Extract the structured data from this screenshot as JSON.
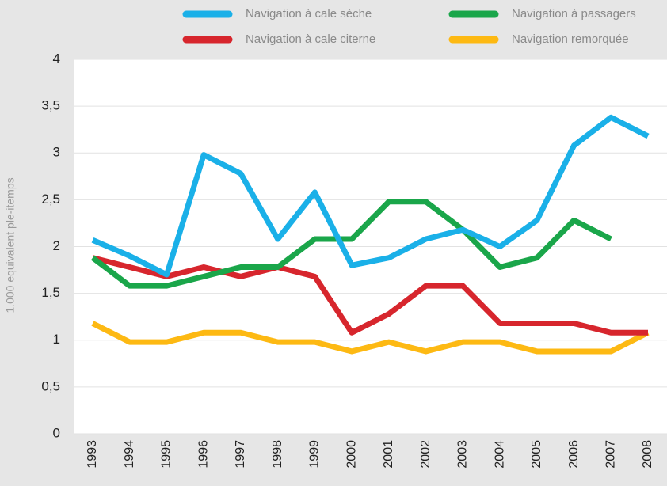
{
  "chart_data": {
    "type": "line",
    "y_label": "1.000 equivalent ple-itemps",
    "categories": [
      "1993",
      "1994",
      "1995",
      "1996",
      "1997",
      "1998",
      "1999",
      "2000",
      "2001",
      "2002",
      "2003",
      "2004",
      "2005",
      "2006",
      "2007",
      "2008"
    ],
    "series": [
      {
        "name": "Navigation à cale sèche",
        "color": "#1ab0e8",
        "values": [
          2.07,
          1.9,
          1.7,
          2.98,
          2.78,
          2.08,
          2.58,
          1.8,
          1.88,
          2.08,
          2.18,
          2.0,
          2.28,
          3.08,
          3.38,
          3.18
        ]
      },
      {
        "name": "Navigation à passagers",
        "color": "#1aa64a",
        "values": [
          1.88,
          1.58,
          1.58,
          1.68,
          1.78,
          1.78,
          2.08,
          2.08,
          2.48,
          2.48,
          2.18,
          1.78,
          1.88,
          2.28,
          2.08,
          null
        ]
      },
      {
        "name": "Navigation à cale citerne",
        "color": "#d7262d",
        "values": [
          1.88,
          1.78,
          1.68,
          1.78,
          1.68,
          1.78,
          1.68,
          1.08,
          1.28,
          1.58,
          1.58,
          1.18,
          1.18,
          1.18,
          1.08,
          1.08
        ]
      },
      {
        "name": "Navigation remorquée",
        "color": "#fdb913",
        "values": [
          1.18,
          0.98,
          0.98,
          1.08,
          1.08,
          0.98,
          0.98,
          0.88,
          0.98,
          0.88,
          0.98,
          0.98,
          0.88,
          0.88,
          0.88,
          1.08
        ]
      }
    ],
    "ylim": [
      0,
      4
    ],
    "yticks": [
      0,
      {
        "value": 0.5,
        "label": "0,5"
      },
      1,
      {
        "value": 1.5,
        "label": "1,5"
      },
      2,
      {
        "value": 2.5,
        "label": "2,5"
      },
      3,
      {
        "value": 3.5,
        "label": "3,5"
      },
      4
    ],
    "grid": true
  }
}
